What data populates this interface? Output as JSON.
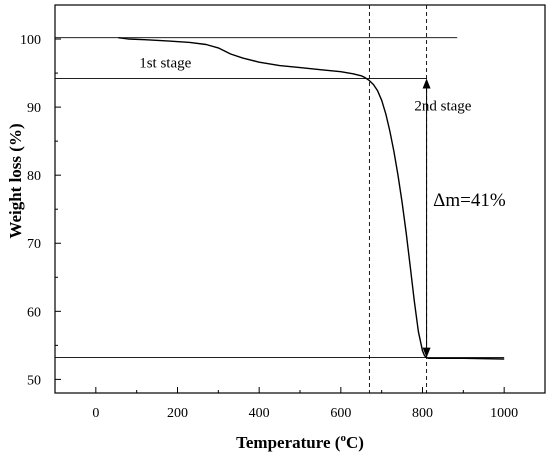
{
  "chart_data": {
    "type": "line",
    "xlabel": "Temperature (",
    "xlabel_sup": "o",
    "xlabel_unit": "C)",
    "ylabel": "Weight loss (%)",
    "xlim": [
      -100,
      1100
    ],
    "ylim": [
      48,
      105
    ],
    "xticks": [
      0,
      200,
      400,
      600,
      800,
      1000
    ],
    "yticks": [
      50,
      60,
      70,
      80,
      90,
      100
    ],
    "grid": false,
    "series": [
      {
        "x": [
          55,
          80,
          120,
          180,
          230,
          270,
          300,
          330,
          360,
          400,
          450,
          500,
          550,
          600,
          630,
          650,
          660,
          670,
          680,
          690,
          700,
          710,
          720,
          730,
          740,
          750,
          760,
          770,
          780,
          790,
          800,
          805,
          810,
          815,
          820,
          900,
          1000
        ],
        "values": [
          100.2,
          100.0,
          99.9,
          99.7,
          99.5,
          99.2,
          98.7,
          97.8,
          97.2,
          96.6,
          96.1,
          95.8,
          95.5,
          95.2,
          94.9,
          94.6,
          94.3,
          93.9,
          93.3,
          92.4,
          91.0,
          89.0,
          86.5,
          83.5,
          80.0,
          76.0,
          71.5,
          66.5,
          61.5,
          57.0,
          54.2,
          53.5,
          53.2,
          53.1,
          53.1,
          53.1,
          53.0
        ]
      }
    ],
    "reference_lines": {
      "horizontal": [
        100.2,
        94.2,
        53.2
      ],
      "vertical": [
        670,
        810
      ]
    },
    "annotations": [
      {
        "text": "1st stage",
        "x": 170,
        "y": 95.8
      },
      {
        "text": "2nd stage",
        "x": 850,
        "y": 89.5
      },
      {
        "text": "Δm=41%",
        "x": 915,
        "y": 75.5
      }
    ]
  }
}
